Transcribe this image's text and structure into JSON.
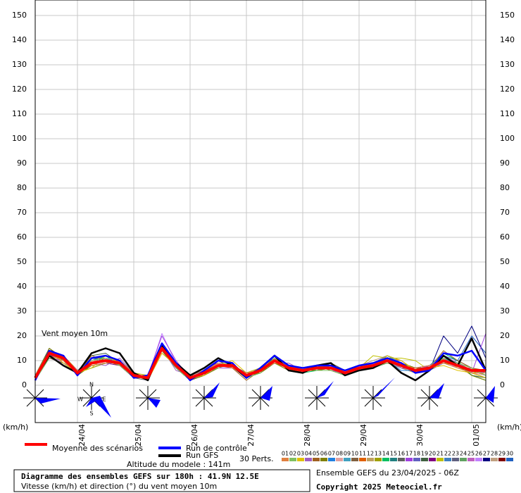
{
  "chart_data": {
    "type": "line",
    "title": "Diagramme des ensembles GEFS sur 180h : 41.9N 12.5E",
    "subtitle": "Vitesse (km/h) et direction (°) du vent moyen 10m",
    "ylabel": "(km/h)",
    "y2label": "(km/h)",
    "annotations": {
      "series_label": "Vent moyen 10m",
      "altitude": "Altitude du modele : 141m",
      "perts": "30 Perts.",
      "run": "Ensemble GEFS du 23/04/2025 - 06Z",
      "copyright": "Copyright 2025 Meteociel.fr"
    },
    "compass": {
      "n": "N",
      "e": "E",
      "s": "S",
      "w": "W"
    },
    "grid": true,
    "ylim": [
      0,
      150
    ],
    "yticks": [
      0,
      10,
      20,
      30,
      40,
      50,
      60,
      70,
      80,
      90,
      100,
      110,
      120,
      130,
      140,
      150
    ],
    "y2lim": [
      0,
      150
    ],
    "y2ticks": [
      0,
      10,
      20,
      30,
      40,
      50,
      60,
      70,
      80,
      90,
      100,
      110,
      120,
      130,
      140,
      150
    ],
    "categories": [
      null,
      null,
      null,
      "24/04",
      null,
      null,
      null,
      "25/04",
      null,
      null,
      null,
      "26/04",
      null,
      null,
      null,
      "27/04",
      null,
      null,
      null,
      "28/04",
      null,
      null,
      null,
      "29/04",
      null,
      null,
      null,
      "30/04",
      null,
      null,
      null,
      "01/05",
      null
    ],
    "series": [
      {
        "name": "Moyenne des scénarios",
        "color": "#ff0000",
        "values": [
          3,
          13,
          11,
          5,
          9,
          10,
          9,
          4,
          3,
          15,
          8,
          3,
          5,
          8,
          8,
          4,
          6,
          10,
          7,
          6,
          7,
          7,
          5,
          7,
          8,
          10,
          8,
          6,
          7,
          10,
          8,
          6,
          6
        ]
      },
      {
        "name": "Run de contrôle",
        "color": "#0000ff",
        "values": [
          2,
          14,
          12,
          4,
          11,
          12,
          10,
          3,
          4,
          17,
          9,
          2,
          6,
          10,
          9,
          3,
          7,
          12,
          8,
          7,
          8,
          8,
          6,
          8,
          9,
          11,
          9,
          5,
          6,
          13,
          12,
          14,
          6
        ]
      },
      {
        "name": "Run GFS",
        "color": "#000000",
        "values": [
          3,
          12,
          8,
          5,
          13,
          15,
          13,
          5,
          2,
          16,
          9,
          4,
          7,
          11,
          8,
          3,
          7,
          12,
          6,
          5,
          8,
          9,
          4,
          6,
          7,
          10,
          5,
          2,
          6,
          12,
          8,
          19,
          6
        ]
      },
      {
        "name": "01",
        "color": "#e08040",
        "values": [
          3,
          12,
          10,
          6,
          8,
          9,
          10,
          5,
          3,
          14,
          9,
          4,
          6,
          9,
          7,
          5,
          6,
          9,
          8,
          6,
          7,
          8,
          5,
          7,
          9,
          11,
          8,
          7,
          8,
          9,
          7,
          5,
          5
        ]
      },
      {
        "name": "02",
        "color": "#80c060",
        "values": [
          2,
          11,
          12,
          4,
          10,
          11,
          8,
          3,
          4,
          16,
          7,
          2,
          5,
          7,
          9,
          3,
          5,
          11,
          6,
          7,
          6,
          6,
          4,
          6,
          7,
          9,
          9,
          6,
          6,
          11,
          9,
          7,
          4
        ]
      },
      {
        "name": "03",
        "color": "#e0c000",
        "values": [
          4,
          14,
          9,
          5,
          7,
          12,
          9,
          4,
          2,
          13,
          8,
          3,
          4,
          8,
          10,
          5,
          7,
          10,
          7,
          5,
          8,
          7,
          6,
          8,
          8,
          12,
          10,
          6,
          7,
          8,
          6,
          5,
          3
        ]
      },
      {
        "name": "04",
        "color": "#a060c0",
        "values": [
          3,
          13,
          11,
          6,
          9,
          8,
          11,
          5,
          3,
          15,
          6,
          4,
          6,
          9,
          8,
          4,
          6,
          9,
          9,
          6,
          7,
          9,
          5,
          7,
          9,
          10,
          7,
          6,
          8,
          12,
          9,
          6,
          5
        ]
      },
      {
        "name": "05",
        "color": "#a06020",
        "values": [
          2,
          12,
          10,
          5,
          12,
          10,
          8,
          4,
          4,
          17,
          9,
          3,
          5,
          10,
          7,
          2,
          6,
          11,
          6,
          7,
          8,
          6,
          4,
          6,
          8,
          9,
          8,
          5,
          7,
          14,
          10,
          7,
          6
        ]
      },
      {
        "name": "06",
        "color": "#808000",
        "values": [
          3,
          15,
          11,
          4,
          8,
          9,
          10,
          3,
          3,
          14,
          8,
          2,
          4,
          7,
          9,
          4,
          5,
          9,
          7,
          6,
          6,
          7,
          5,
          8,
          7,
          11,
          9,
          7,
          6,
          10,
          8,
          4,
          2
        ]
      },
      {
        "name": "07",
        "color": "#2080e0",
        "values": [
          4,
          13,
          12,
          5,
          9,
          11,
          9,
          5,
          2,
          16,
          7,
          3,
          6,
          8,
          8,
          5,
          7,
          10,
          8,
          6,
          7,
          8,
          6,
          7,
          8,
          10,
          6,
          6,
          8,
          11,
          8,
          6,
          5
        ]
      },
      {
        "name": "08",
        "color": "#e0a0a0",
        "values": [
          3,
          12,
          10,
          6,
          10,
          10,
          8,
          4,
          3,
          15,
          9,
          4,
          5,
          9,
          7,
          3,
          6,
          12,
          7,
          5,
          7,
          7,
          5,
          6,
          9,
          9,
          8,
          6,
          7,
          9,
          7,
          5,
          4
        ]
      },
      {
        "name": "09",
        "color": "#40a0c0",
        "values": [
          2,
          14,
          11,
          5,
          11,
          12,
          10,
          4,
          4,
          14,
          8,
          3,
          5,
          8,
          9,
          4,
          6,
          11,
          6,
          7,
          8,
          8,
          4,
          8,
          8,
          12,
          9,
          5,
          6,
          10,
          9,
          6,
          6
        ]
      },
      {
        "name": "10",
        "color": "#806040",
        "values": [
          3,
          11,
          9,
          5,
          8,
          9,
          9,
          3,
          3,
          15,
          7,
          3,
          6,
          9,
          8,
          5,
          7,
          9,
          8,
          6,
          6,
          7,
          6,
          7,
          7,
          10,
          8,
          7,
          7,
          12,
          8,
          5,
          3
        ]
      },
      {
        "name": "11",
        "color": "#e06000",
        "values": [
          4,
          13,
          12,
          6,
          9,
          10,
          8,
          5,
          2,
          13,
          8,
          2,
          4,
          8,
          7,
          4,
          5,
          10,
          7,
          5,
          7,
          9,
          5,
          6,
          8,
          11,
          10,
          6,
          8,
          10,
          9,
          7,
          5
        ]
      },
      {
        "name": "12",
        "color": "#c0a060",
        "values": [
          3,
          12,
          10,
          4,
          10,
          11,
          10,
          4,
          3,
          16,
          9,
          4,
          6,
          7,
          9,
          3,
          6,
          11,
          8,
          7,
          8,
          6,
          4,
          7,
          9,
          9,
          7,
          5,
          6,
          11,
          7,
          6,
          4
        ]
      },
      {
        "name": "13",
        "color": "#a0a000",
        "values": [
          2,
          14,
          11,
          5,
          7,
          9,
          9,
          3,
          4,
          15,
          8,
          3,
          5,
          9,
          8,
          5,
          7,
          9,
          6,
          6,
          7,
          8,
          6,
          8,
          7,
          12,
          9,
          7,
          7,
          9,
          8,
          5,
          6
        ]
      },
      {
        "name": "14",
        "color": "#00c060",
        "values": [
          3,
          13,
          12,
          6,
          9,
          12,
          8,
          4,
          3,
          14,
          7,
          2,
          6,
          10,
          7,
          4,
          6,
          10,
          7,
          5,
          6,
          7,
          5,
          6,
          8,
          10,
          8,
          6,
          8,
          13,
          10,
          4,
          2
        ]
      },
      {
        "name": "15",
        "color": "#208080",
        "values": [
          4,
          12,
          10,
          5,
          11,
          10,
          10,
          5,
          2,
          17,
          9,
          4,
          4,
          8,
          9,
          3,
          5,
          12,
          8,
          7,
          8,
          8,
          4,
          7,
          9,
          11,
          8,
          6,
          6,
          10,
          8,
          6,
          5
        ]
      },
      {
        "name": "16",
        "color": "#606060",
        "values": [
          3,
          14,
          11,
          4,
          8,
          9,
          9,
          4,
          3,
          15,
          8,
          3,
          5,
          9,
          8,
          5,
          7,
          9,
          7,
          6,
          7,
          9,
          6,
          8,
          8,
          10,
          7,
          5,
          7,
          11,
          9,
          7,
          4
        ]
      },
      {
        "name": "17",
        "color": "#a040e0",
        "values": [
          2,
          13,
          9,
          6,
          10,
          11,
          8,
          3,
          4,
          20,
          10,
          3,
          6,
          7,
          7,
          4,
          6,
          11,
          6,
          5,
          8,
          6,
          5,
          6,
          7,
          9,
          9,
          7,
          8,
          12,
          8,
          5,
          21
        ]
      },
      {
        "name": "18",
        "color": "#6060c0",
        "values": [
          3,
          11,
          12,
          5,
          9,
          10,
          10,
          5,
          3,
          14,
          7,
          2,
          5,
          8,
          9,
          3,
          6,
          10,
          8,
          6,
          6,
          7,
          4,
          7,
          9,
          12,
          10,
          6,
          6,
          9,
          7,
          6,
          6
        ]
      },
      {
        "name": "19",
        "color": "#406040",
        "values": [
          4,
          15,
          10,
          5,
          12,
          13,
          9,
          4,
          2,
          15,
          8,
          4,
          6,
          9,
          8,
          5,
          5,
          9,
          7,
          7,
          7,
          8,
          6,
          8,
          8,
          10,
          8,
          5,
          7,
          11,
          9,
          4,
          3
        ]
      },
      {
        "name": "20",
        "color": "#800080",
        "values": [
          3,
          12,
          11,
          6,
          8,
          9,
          8,
          3,
          3,
          16,
          9,
          3,
          4,
          10,
          7,
          4,
          7,
          12,
          6,
          5,
          8,
          8,
          5,
          6,
          7,
          11,
          9,
          7,
          8,
          10,
          8,
          6,
          5
        ]
      },
      {
        "name": "21",
        "color": "#c0c000",
        "values": [
          2,
          13,
          10,
          4,
          9,
          10,
          10,
          5,
          4,
          14,
          7,
          2,
          6,
          8,
          9,
          3,
          6,
          10,
          8,
          6,
          7,
          7,
          4,
          7,
          12,
          11,
          11,
          10,
          6,
          12,
          7,
          5,
          6
        ]
      },
      {
        "name": "22",
        "color": "#4080c0",
        "values": [
          3,
          14,
          12,
          5,
          10,
          12,
          9,
          4,
          3,
          15,
          8,
          4,
          5,
          9,
          8,
          5,
          6,
          9,
          7,
          7,
          6,
          9,
          6,
          8,
          8,
          9,
          8,
          6,
          7,
          9,
          10,
          7,
          4
        ]
      },
      {
        "name": "23",
        "color": "#606080",
        "values": [
          4,
          12,
          11,
          6,
          11,
          11,
          8,
          3,
          2,
          16,
          9,
          3,
          6,
          7,
          7,
          4,
          7,
          11,
          6,
          6,
          8,
          6,
          5,
          6,
          9,
          10,
          7,
          5,
          8,
          11,
          8,
          6,
          5
        ]
      },
      {
        "name": "24",
        "color": "#60a060",
        "values": [
          3,
          13,
          9,
          5,
          7,
          9,
          10,
          5,
          3,
          14,
          7,
          2,
          5,
          10,
          9,
          3,
          5,
          10,
          8,
          5,
          7,
          8,
          4,
          7,
          8,
          12,
          9,
          6,
          6,
          10,
          9,
          5,
          3
        ]
      },
      {
        "name": "25",
        "color": "#c060c0",
        "values": [
          2,
          11,
          10,
          4,
          9,
          10,
          9,
          4,
          4,
          15,
          8,
          4,
          4,
          8,
          8,
          5,
          6,
          12,
          7,
          7,
          6,
          7,
          6,
          8,
          7,
          11,
          8,
          7,
          7,
          12,
          8,
          6,
          6
        ]
      },
      {
        "name": "26",
        "color": "#c080ff",
        "values": [
          3,
          14,
          12,
          6,
          10,
          11,
          8,
          3,
          3,
          21,
          9,
          3,
          6,
          9,
          7,
          4,
          7,
          9,
          6,
          6,
          8,
          9,
          5,
          6,
          9,
          10,
          10,
          6,
          8,
          10,
          7,
          7,
          4
        ]
      },
      {
        "name": "27",
        "color": "#000080",
        "values": [
          4,
          13,
          11,
          5,
          8,
          9,
          10,
          5,
          2,
          15,
          7,
          2,
          5,
          8,
          9,
          3,
          6,
          10,
          8,
          5,
          7,
          7,
          4,
          7,
          8,
          9,
          8,
          5,
          6,
          20,
          13,
          24,
          11
        ]
      },
      {
        "name": "28",
        "color": "#c0a080",
        "values": [
          3,
          12,
          10,
          5,
          11,
          12,
          9,
          4,
          3,
          14,
          8,
          4,
          6,
          9,
          8,
          5,
          5,
          11,
          7,
          7,
          6,
          8,
          6,
          8,
          10,
          12,
          9,
          6,
          7,
          9,
          8,
          5,
          5
        ]
      },
      {
        "name": "29",
        "color": "#800000",
        "values": [
          2,
          14,
          11,
          6,
          9,
          10,
          10,
          3,
          4,
          16,
          9,
          3,
          5,
          7,
          7,
          4,
          6,
          9,
          6,
          6,
          8,
          6,
          5,
          6,
          8,
          10,
          7,
          7,
          8,
          11,
          9,
          6,
          4
        ]
      },
      {
        "name": "30",
        "color": "#2060c0",
        "values": [
          3,
          12,
          12,
          4,
          10,
          11,
          8,
          5,
          3,
          15,
          7,
          2,
          4,
          10,
          9,
          3,
          7,
          12,
          8,
          5,
          7,
          9,
          4,
          7,
          9,
          11,
          8,
          5,
          6,
          12,
          10,
          20,
          13
        ]
      }
    ]
  }
}
